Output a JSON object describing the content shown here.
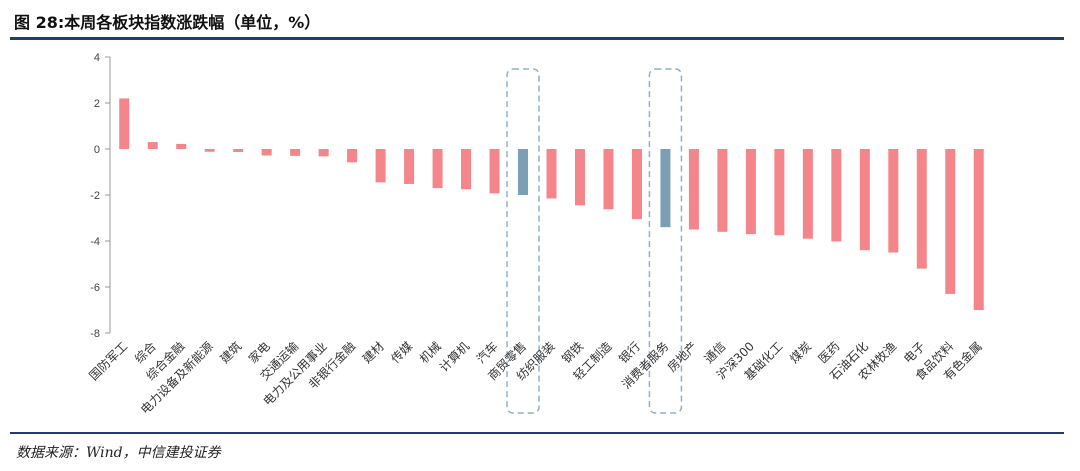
{
  "figure": {
    "title": "图 28:本周各板块指数涨跌幅（单位，%）",
    "source": "数据来源：Wind，中信建投证券"
  },
  "colors": {
    "default_bar": "#f4858a",
    "highlight_bar": "#7b9fb5",
    "rule": "#1f3d6e",
    "highlight_box": "#8fb1cf"
  },
  "chart_data": {
    "type": "bar",
    "title": "",
    "xlabel": "",
    "ylabel": "",
    "ylim": [
      -8,
      4
    ],
    "yticks": [
      4,
      2,
      0,
      -2,
      -4,
      -6,
      -8
    ],
    "grid": false,
    "legend": "none",
    "categories": [
      "国防军工",
      "综合",
      "综合金融",
      "电力设备及新能源",
      "建筑",
      "家电",
      "交通运输",
      "电力及公用事业",
      "非银行金融",
      "建材",
      "传媒",
      "机械",
      "计算机",
      "汽车",
      "商贸零售",
      "纺织服装",
      "钢铁",
      "轻工制造",
      "银行",
      "消费者服务",
      "房地产",
      "通信",
      "沪深300",
      "基础化工",
      "煤炭",
      "医药",
      "石油石化",
      "农林牧渔",
      "电子",
      "食品饮料",
      "有色金属"
    ],
    "values": [
      2.2,
      0.3,
      0.22,
      -0.12,
      -0.13,
      -0.28,
      -0.3,
      -0.32,
      -0.58,
      -1.45,
      -1.52,
      -1.7,
      -1.75,
      -1.93,
      -2.0,
      -2.15,
      -2.45,
      -2.62,
      -3.05,
      -3.4,
      -3.5,
      -3.6,
      -3.7,
      -3.75,
      -3.9,
      -4.02,
      -4.4,
      -4.5,
      -5.2,
      -6.3,
      -7.0
    ],
    "highlighted": [
      "商贸零售",
      "消费者服务"
    ]
  }
}
